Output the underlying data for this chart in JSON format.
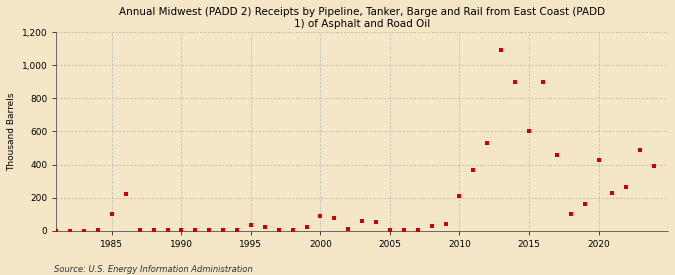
{
  "title": "Annual Midwest (PADD 2) Receipts by Pipeline, Tanker, Barge and Rail from East Coast (PADD\n1) of Asphalt and Road Oil",
  "ylabel": "Thousand Barrels",
  "source": "Source: U.S. Energy Information Administration",
  "background_color": "#f5e6c8",
  "plot_bg_color": "#f5e6c8",
  "marker_color": "#cc0000",
  "marker_size": 8,
  "xlim": [
    1981,
    2025
  ],
  "ylim": [
    0,
    1200
  ],
  "yticks": [
    0,
    200,
    400,
    600,
    800,
    1000,
    1200
  ],
  "xticks": [
    1985,
    1990,
    1995,
    2000,
    2005,
    2010,
    2015,
    2020
  ],
  "data": [
    [
      1981,
      0
    ],
    [
      1982,
      0
    ],
    [
      1983,
      0
    ],
    [
      1984,
      2
    ],
    [
      1985,
      100
    ],
    [
      1986,
      220
    ],
    [
      1987,
      3
    ],
    [
      1988,
      2
    ],
    [
      1989,
      2
    ],
    [
      1990,
      2
    ],
    [
      1991,
      2
    ],
    [
      1992,
      2
    ],
    [
      1993,
      2
    ],
    [
      1994,
      3
    ],
    [
      1995,
      35
    ],
    [
      1996,
      20
    ],
    [
      1997,
      5
    ],
    [
      1998,
      5
    ],
    [
      1999,
      20
    ],
    [
      2000,
      90
    ],
    [
      2001,
      80
    ],
    [
      2002,
      10
    ],
    [
      2003,
      60
    ],
    [
      2004,
      55
    ],
    [
      2005,
      5
    ],
    [
      2006,
      5
    ],
    [
      2007,
      5
    ],
    [
      2008,
      30
    ],
    [
      2009,
      40
    ],
    [
      2010,
      210
    ],
    [
      2011,
      365
    ],
    [
      2012,
      530
    ],
    [
      2013,
      1090
    ],
    [
      2014,
      900
    ],
    [
      2015,
      600
    ],
    [
      2016,
      900
    ],
    [
      2017,
      460
    ],
    [
      2018,
      100
    ],
    [
      2019,
      160
    ],
    [
      2020,
      430
    ],
    [
      2021,
      230
    ],
    [
      2022,
      265
    ],
    [
      2023,
      490
    ],
    [
      2024,
      390
    ]
  ],
  "title_fontsize": 7.5,
  "ylabel_fontsize": 6.5,
  "tick_fontsize": 6.5,
  "source_fontsize": 6
}
